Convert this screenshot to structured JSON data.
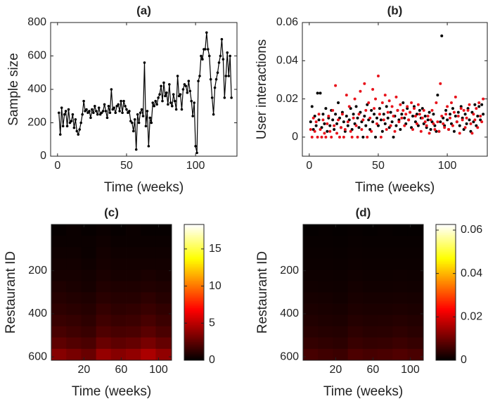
{
  "chart_data": [
    {
      "type": "line",
      "title": "(a)",
      "xlabel": "Time (weeks)",
      "ylabel": "Sample size",
      "color": "#000000",
      "xlim": [
        -5,
        130
      ],
      "ylim": [
        0,
        800
      ],
      "xticks": [
        0,
        50,
        100
      ],
      "yticks": [
        0,
        200,
        400,
        600,
        800
      ],
      "x": [
        1,
        2,
        3,
        4,
        5,
        6,
        7,
        8,
        9,
        10,
        11,
        12,
        13,
        14,
        15,
        16,
        17,
        18,
        19,
        20,
        21,
        22,
        23,
        24,
        25,
        26,
        27,
        28,
        29,
        30,
        31,
        32,
        33,
        34,
        35,
        36,
        37,
        38,
        39,
        40,
        41,
        42,
        43,
        44,
        45,
        46,
        47,
        48,
        49,
        50,
        51,
        52,
        53,
        54,
        55,
        56,
        57,
        58,
        59,
        60,
        61,
        62,
        63,
        64,
        65,
        66,
        67,
        68,
        69,
        70,
        71,
        72,
        73,
        74,
        75,
        76,
        77,
        78,
        79,
        80,
        81,
        82,
        83,
        84,
        85,
        86,
        87,
        88,
        89,
        90,
        91,
        92,
        93,
        94,
        95,
        96,
        97,
        98,
        99,
        100,
        101,
        102,
        103,
        104,
        105,
        106,
        107,
        108,
        109,
        110,
        111,
        112,
        113,
        114,
        115,
        116,
        117,
        118,
        119,
        120,
        121,
        122,
        123,
        124,
        125,
        126
      ],
      "values": [
        260,
        130,
        290,
        180,
        250,
        270,
        180,
        280,
        200,
        210,
        250,
        170,
        220,
        150,
        130,
        160,
        200,
        250,
        330,
        270,
        280,
        260,
        270,
        230,
        280,
        260,
        300,
        270,
        250,
        290,
        250,
        260,
        270,
        310,
        270,
        230,
        300,
        260,
        400,
        280,
        290,
        260,
        300,
        310,
        270,
        330,
        260,
        330,
        300,
        280,
        260,
        270,
        210,
        200,
        150,
        220,
        40,
        250,
        200,
        260,
        280,
        240,
        560,
        180,
        270,
        60,
        230,
        200,
        320,
        300,
        330,
        310,
        350,
        370,
        420,
        330,
        440,
        360,
        380,
        310,
        430,
        320,
        300,
        370,
        330,
        280,
        480,
        360,
        370,
        280,
        400,
        430,
        420,
        380,
        450,
        390,
        330,
        240,
        320,
        60,
        20,
        450,
        480,
        600,
        580,
        640,
        640,
        740,
        640,
        600,
        460,
        350,
        250,
        410,
        460,
        500,
        560,
        600,
        700,
        580,
        350,
        480,
        620,
        480,
        600,
        350
      ]
    },
    {
      "type": "scatter",
      "title": "(b)",
      "xlabel": "Time (weeks)",
      "ylabel": "User interactions",
      "xlim": [
        -5,
        129
      ],
      "ylim": [
        -0.01,
        0.06
      ],
      "xticks": [
        0,
        50,
        100
      ],
      "yticks": [
        0,
        0.02,
        0.04,
        0.06
      ],
      "x": [
        1,
        2,
        3,
        4,
        5,
        6,
        7,
        8,
        9,
        10,
        11,
        12,
        13,
        14,
        15,
        16,
        17,
        18,
        19,
        20,
        21,
        22,
        23,
        24,
        25,
        26,
        27,
        28,
        29,
        30,
        31,
        32,
        33,
        34,
        35,
        36,
        37,
        38,
        39,
        40,
        41,
        42,
        43,
        44,
        45,
        46,
        47,
        48,
        49,
        50,
        51,
        52,
        53,
        54,
        55,
        56,
        57,
        58,
        59,
        60,
        61,
        62,
        63,
        64,
        65,
        66,
        67,
        68,
        69,
        70,
        71,
        72,
        73,
        74,
        75,
        76,
        77,
        78,
        79,
        80,
        81,
        82,
        83,
        84,
        85,
        86,
        87,
        88,
        89,
        90,
        91,
        92,
        93,
        94,
        95,
        96,
        97,
        98,
        99,
        100,
        101,
        102,
        103,
        104,
        105,
        106,
        107,
        108,
        109,
        110,
        111,
        112,
        113,
        114,
        115,
        116,
        117,
        118,
        119,
        120,
        121,
        122,
        123,
        124,
        125,
        126
      ],
      "series": [
        {
          "color": "#000000",
          "values": [
            0.008,
            0.016,
            0.004,
            0.011,
            0.006,
            0.023,
            0.009,
            0.023,
            0.005,
            0.012,
            0.007,
            0.015,
            0.003,
            0.01,
            0.006,
            0.014,
            0.009,
            0.004,
            0.012,
            0.007,
            0.018,
            0.01,
            0.005,
            0.013,
            0.008,
            0.003,
            0.011,
            0.006,
            0.009,
            0.015,
            0.004,
            0.012,
            0.007,
            0.016,
            0.01,
            0.005,
            0.013,
            0.008,
            0.0,
            0.011,
            0.006,
            0.017,
            0.009,
            0.004,
            0.014,
            0.008,
            0.012,
            0.0,
            0.01,
            0.006,
            0.015,
            0.009,
            0.003,
            0.012,
            0.007,
            0.016,
            0.01,
            0.005,
            0.013,
            0.008,
            0.0,
            0.011,
            0.006,
            0.014,
            0.009,
            0.004,
            0.012,
            0.018,
            0.01,
            0.007,
            0.015,
            0.009,
            0.013,
            0.005,
            0.011,
            0.016,
            0.008,
            0.012,
            0.006,
            0.014,
            0.01,
            0.015,
            0.007,
            0.011,
            0.005,
            0.009,
            0.013,
            0.004,
            0.008,
            0.012,
            0.006,
            0.003,
            0.022,
            0.003,
            0.008,
            0.053,
            0.01,
            0.006,
            0.014,
            0.009,
            0.004,
            0.012,
            0.007,
            0.015,
            0.003,
            0.011,
            0.008,
            0.013,
            0.006,
            0.016,
            0.01,
            0.004,
            0.012,
            0.007,
            0.015,
            0.009,
            0.003,
            0.013,
            0.008,
            0.017,
            0.006,
            0.011,
            0.016,
            0.009,
            0.017,
            0.012
          ]
        },
        {
          "color": "#e8141c",
          "values": [
            0.004,
            0.0,
            0.01,
            0.003,
            0.008,
            0.0,
            0.012,
            0.004,
            0.0,
            0.009,
            0.002,
            0.0,
            0.007,
            0.011,
            0.003,
            0.0,
            0.014,
            0.006,
            0.027,
            0.002,
            0.009,
            0.0,
            0.005,
            0.012,
            0.0,
            0.004,
            0.022,
            0.008,
            0.016,
            0.003,
            0.0,
            0.01,
            0.02,
            0.006,
            0.0,
            0.012,
            0.024,
            0.004,
            0.009,
            0.028,
            0.014,
            0.0,
            0.018,
            0.01,
            0.003,
            0.025,
            0.015,
            0.02,
            0.007,
            0.032,
            0.012,
            0.0,
            0.018,
            0.009,
            0.022,
            0.004,
            0.013,
            0.019,
            0.006,
            0.016,
            0.011,
            0.003,
            0.021,
            0.014,
            0.008,
            0.017,
            0.01,
            0.014,
            0.006,
            0.012,
            0.016,
            0.009,
            0.013,
            0.018,
            0.004,
            0.015,
            0.011,
            0.007,
            0.017,
            0.012,
            0.003,
            0.01,
            0.014,
            0.008,
            0.006,
            0.011,
            0.002,
            0.009,
            0.014,
            0.007,
            0.004,
            0.018,
            0.008,
            0.003,
            0.028,
            0.011,
            0.007,
            0.005,
            0.012,
            0.016,
            0.004,
            0.01,
            0.018,
            0.006,
            0.013,
            0.021,
            0.008,
            0.011,
            0.002,
            0.015,
            0.009,
            0.014,
            0.005,
            0.01,
            0.014,
            0.017,
            0.007,
            0.002,
            0.012,
            0.009,
            0.015,
            0.005,
            0.018,
            0.011,
            0.008,
            0.02
          ]
        }
      ]
    },
    {
      "type": "heatmap",
      "title": "(c)",
      "xlabel": "Time (weeks)",
      "ylabel": "Restaurant ID",
      "colormap": "hot",
      "y_reversed": true,
      "xlim": [
        -15,
        114
      ],
      "ylim": [
        -15,
        616
      ],
      "xticks": [
        20,
        60,
        100
      ],
      "yticks": [
        200,
        400,
        600
      ],
      "clim": [
        0,
        18.3
      ],
      "cticks": [
        0,
        5,
        10,
        15
      ],
      "xbins": [
        -15,
        1,
        17,
        33,
        49,
        65,
        81,
        97,
        114
      ],
      "ybins": [
        -15,
        38,
        90,
        143,
        195,
        248,
        300,
        353,
        405,
        458,
        510,
        563,
        616
      ],
      "z": [
        [
          0.2,
          0.3,
          0.2,
          0.3,
          0.2,
          0.3,
          0.2,
          0.2
        ],
        [
          0.3,
          0.3,
          0.3,
          0.4,
          0.3,
          0.3,
          0.3,
          0.3
        ],
        [
          0.4,
          0.4,
          0.3,
          0.5,
          0.4,
          0.4,
          0.4,
          0.4
        ],
        [
          0.5,
          0.5,
          0.4,
          0.6,
          0.5,
          0.5,
          0.5,
          0.5
        ],
        [
          0.6,
          0.6,
          0.5,
          0.7,
          0.6,
          0.6,
          0.7,
          0.6
        ],
        [
          0.8,
          0.7,
          0.6,
          0.9,
          0.8,
          0.8,
          0.9,
          0.8
        ],
        [
          1.0,
          0.9,
          0.8,
          1.1,
          1.0,
          1.0,
          1.2,
          1.0
        ],
        [
          1.2,
          1.1,
          1.0,
          1.4,
          1.2,
          1.3,
          1.5,
          1.3
        ],
        [
          1.5,
          1.4,
          1.2,
          1.7,
          1.5,
          1.6,
          1.9,
          1.6
        ],
        [
          1.9,
          1.7,
          1.5,
          2.1,
          1.9,
          2.0,
          2.4,
          2.0
        ],
        [
          2.5,
          2.2,
          2.0,
          2.8,
          2.5,
          2.7,
          3.2,
          2.7
        ],
        [
          3.6,
          3.2,
          2.8,
          4.0,
          3.6,
          3.9,
          4.6,
          3.9
        ]
      ]
    },
    {
      "type": "heatmap",
      "title": "(d)",
      "xlabel": "Time (weeks)",
      "ylabel": "Restaurant ID",
      "colormap": "hot",
      "y_reversed": true,
      "xlim": [
        -15,
        114
      ],
      "ylim": [
        -15,
        616
      ],
      "xticks": [
        20,
        60,
        100
      ],
      "yticks": [
        200,
        400,
        600
      ],
      "clim": [
        0,
        0.0626
      ],
      "cticks": [
        0,
        0.02,
        0.04,
        0.06
      ],
      "xbins": [
        -15,
        1,
        17,
        33,
        49,
        65,
        81,
        97,
        114
      ],
      "ybins": [
        -15,
        38,
        90,
        143,
        195,
        248,
        300,
        353,
        405,
        458,
        510,
        563,
        616
      ],
      "z": [
        [
          0.0005,
          0.0006,
          0.0005,
          0.0006,
          0.0005,
          0.0006,
          0.0005,
          0.0005
        ],
        [
          0.0007,
          0.0007,
          0.0006,
          0.0008,
          0.0007,
          0.0007,
          0.0007,
          0.0007
        ],
        [
          0.0009,
          0.0009,
          0.0008,
          0.001,
          0.0009,
          0.0009,
          0.0009,
          0.0009
        ],
        [
          0.0011,
          0.0011,
          0.001,
          0.0012,
          0.0011,
          0.0011,
          0.0011,
          0.0011
        ],
        [
          0.0013,
          0.0013,
          0.0012,
          0.0015,
          0.0013,
          0.0013,
          0.0014,
          0.0013
        ],
        [
          0.0016,
          0.0015,
          0.0014,
          0.0018,
          0.0016,
          0.0016,
          0.0017,
          0.0016
        ],
        [
          0.002,
          0.0019,
          0.0017,
          0.0022,
          0.002,
          0.002,
          0.0021,
          0.002
        ],
        [
          0.0025,
          0.0023,
          0.0021,
          0.0027,
          0.0025,
          0.0025,
          0.0027,
          0.0025
        ],
        [
          0.003,
          0.0028,
          0.0026,
          0.0033,
          0.003,
          0.0031,
          0.0034,
          0.0031
        ],
        [
          0.0037,
          0.0034,
          0.0032,
          0.0041,
          0.0037,
          0.0038,
          0.0042,
          0.0038
        ],
        [
          0.0047,
          0.0043,
          0.004,
          0.0052,
          0.0047,
          0.0049,
          0.0054,
          0.0049
        ],
        [
          0.0064,
          0.0058,
          0.0053,
          0.007,
          0.0064,
          0.0067,
          0.0074,
          0.0067
        ]
      ]
    }
  ]
}
